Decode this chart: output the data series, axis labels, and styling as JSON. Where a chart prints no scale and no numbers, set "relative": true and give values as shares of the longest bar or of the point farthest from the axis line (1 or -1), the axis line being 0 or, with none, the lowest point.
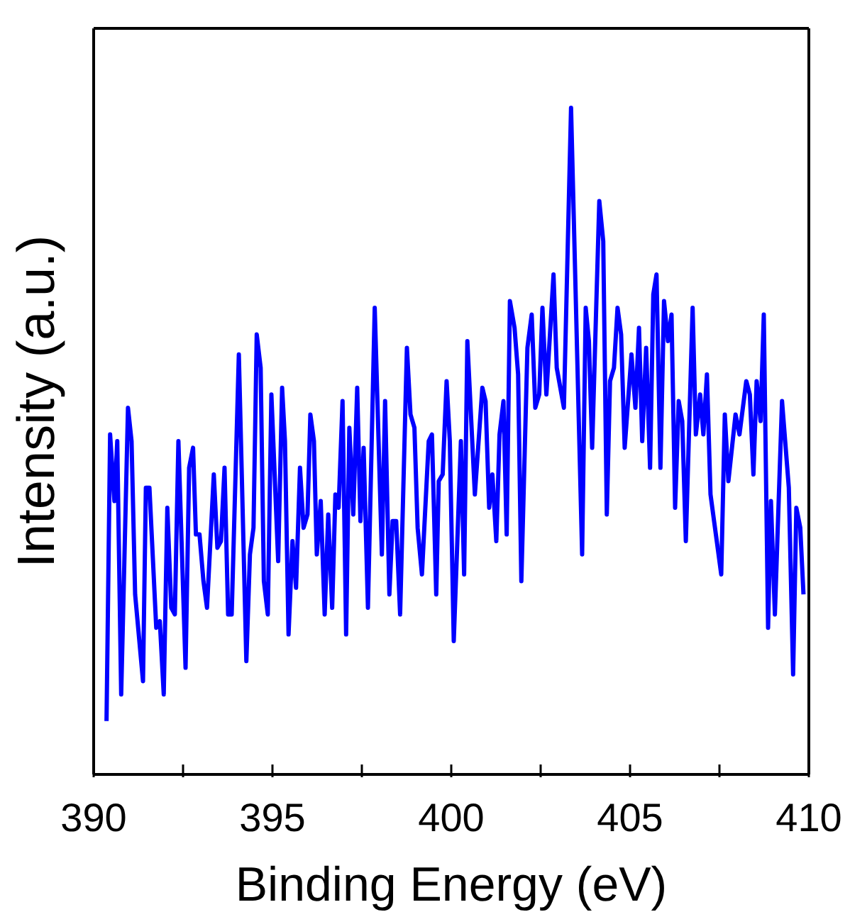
{
  "chart_data": {
    "type": "line",
    "xlabel": "Binding Energy (eV)",
    "ylabel": "Intensity (a.u.)",
    "relative": true,
    "color": "#0000ff",
    "xlim": [
      390,
      410
    ],
    "xticks": [
      390,
      {
        "value": 392.5,
        "label": null
      },
      395,
      {
        "value": 397.5,
        "label": null
      },
      400,
      {
        "value": 402.5,
        "label": null
      },
      405,
      {
        "value": 407.5,
        "label": null
      },
      410
    ],
    "x": [
      390.36,
      390.46,
      390.58,
      390.66,
      390.77,
      390.96,
      391.06,
      391.16,
      391.38,
      391.46,
      391.56,
      391.75,
      391.85,
      391.96,
      392.06,
      392.17,
      392.27,
      392.37,
      392.57,
      392.67,
      392.78,
      392.86,
      392.96,
      393.07,
      393.17,
      393.36,
      393.46,
      393.56,
      393.66,
      393.76,
      393.86,
      394.06,
      394.27,
      394.37,
      394.47,
      394.56,
      394.67,
      394.76,
      394.87,
      394.97,
      395.16,
      395.27,
      395.35,
      395.45,
      395.56,
      395.66,
      395.77,
      395.87,
      395.98,
      396.06,
      396.16,
      396.24,
      396.35,
      396.46,
      396.56,
      396.67,
      396.76,
      396.85,
      396.96,
      397.06,
      397.15,
      397.26,
      397.37,
      397.46,
      397.55,
      397.67,
      397.86,
      398.06,
      398.15,
      398.27,
      398.36,
      398.46,
      398.57,
      398.76,
      398.86,
      398.97,
      399.06,
      399.18,
      399.37,
      399.46,
      399.58,
      399.65,
      399.76,
      399.87,
      399.96,
      400.07,
      400.27,
      400.36,
      400.45,
      400.66,
      400.87,
      400.96,
      401.06,
      401.15,
      401.26,
      401.35,
      401.46,
      401.55,
      401.64,
      401.77,
      401.87,
      401.96,
      402.13,
      402.25,
      402.35,
      402.46,
      402.55,
      402.66,
      402.86,
      402.95,
      403.15,
      403.35,
      403.66,
      403.76,
      403.85,
      403.94,
      404.14,
      404.25,
      404.35,
      404.44,
      404.55,
      404.65,
      404.75,
      404.85,
      405.04,
      405.15,
      405.25,
      405.34,
      405.45,
      405.56,
      405.65,
      405.74,
      405.85,
      405.95,
      406.06,
      406.16,
      406.26,
      406.36,
      406.46,
      406.56,
      406.75,
      406.84,
      406.96,
      407.05,
      407.15,
      407.25,
      407.35,
      407.55,
      407.65,
      407.75,
      407.95,
      408.06,
      408.25,
      408.35,
      408.45,
      408.54,
      408.65,
      408.74,
      408.86,
      408.94,
      409.05,
      409.25,
      409.44,
      409.56,
      409.65,
      409.76,
      409.85
    ],
    "values": [
      0.08,
      0.51,
      0.41,
      0.5,
      0.12,
      0.55,
      0.5,
      0.27,
      0.14,
      0.43,
      0.43,
      0.22,
      0.23,
      0.12,
      0.4,
      0.25,
      0.24,
      0.5,
      0.16,
      0.46,
      0.49,
      0.36,
      0.36,
      0.29,
      0.25,
      0.45,
      0.34,
      0.35,
      0.46,
      0.24,
      0.24,
      0.63,
      0.17,
      0.33,
      0.37,
      0.66,
      0.61,
      0.29,
      0.24,
      0.57,
      0.32,
      0.58,
      0.5,
      0.21,
      0.35,
      0.28,
      0.46,
      0.37,
      0.39,
      0.54,
      0.5,
      0.33,
      0.41,
      0.24,
      0.39,
      0.25,
      0.42,
      0.4,
      0.56,
      0.21,
      0.52,
      0.39,
      0.58,
      0.38,
      0.49,
      0.25,
      0.7,
      0.33,
      0.56,
      0.27,
      0.38,
      0.38,
      0.24,
      0.64,
      0.54,
      0.52,
      0.37,
      0.3,
      0.5,
      0.51,
      0.27,
      0.44,
      0.45,
      0.59,
      0.5,
      0.2,
      0.5,
      0.3,
      0.65,
      0.42,
      0.58,
      0.56,
      0.4,
      0.45,
      0.35,
      0.51,
      0.56,
      0.36,
      0.71,
      0.67,
      0.6,
      0.29,
      0.64,
      0.69,
      0.55,
      0.57,
      0.7,
      0.57,
      0.75,
      0.61,
      0.55,
      1,
      0.33,
      0.7,
      0.65,
      0.49,
      0.86,
      0.8,
      0.39,
      0.59,
      0.61,
      0.7,
      0.66,
      0.49,
      0.63,
      0.55,
      0.67,
      0.5,
      0.64,
      0.46,
      0.72,
      0.75,
      0.46,
      0.71,
      0.65,
      0.69,
      0.4,
      0.56,
      0.53,
      0.35,
      0.7,
      0.51,
      0.57,
      0.51,
      0.6,
      0.42,
      0.38,
      0.3,
      0.54,
      0.44,
      0.54,
      0.51,
      0.59,
      0.57,
      0.45,
      0.59,
      0.53,
      0.69,
      0.22,
      0.41,
      0.24,
      0.56,
      0.43,
      0.15,
      0.4,
      0.37,
      0.27
    ]
  }
}
